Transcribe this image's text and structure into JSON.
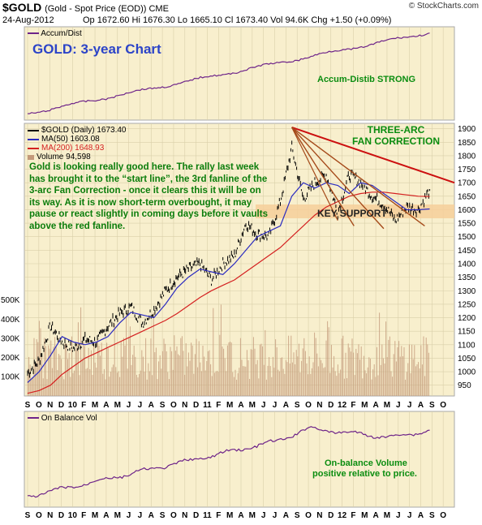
{
  "header": {
    "symbol": "$GOLD",
    "subtitle": "(Gold - Spot Price (EOD)) CME",
    "brand": "© StockCharts.com",
    "date": "24-Aug-2012",
    "ohlc": "Op 1672.60  Hi 1676.30  Lo 1665.10  Cl 1673.40  Vol 94.6K  Chg +1.50 (+0.09%)"
  },
  "colors": {
    "panel_bg": "#f8efcd",
    "frame": "#a9a9a9",
    "accum_line": "#6e2489",
    "price_up": "#000000",
    "ma50": "#2b2bc0",
    "ma200": "#d42020",
    "volume": "#c49a7a",
    "fanline": "#cc1010",
    "fan_brown": "#a54a1a",
    "support_band": "#f6cf9a",
    "blue_title": "#2c44c8",
    "green_text": "#0b8d10"
  },
  "panels": {
    "accum": {
      "label": "Accum/Dist",
      "note": "Accum-Distib STRONG",
      "big_title": "GOLD: 3-year Chart"
    },
    "price": {
      "label": "$GOLD (Daily) 1673.40",
      "legend": [
        {
          "label": "MA(50) 1603.08",
          "color": "#2b2bc0"
        },
        {
          "label": "MA(200) 1648.93",
          "color": "#d42020"
        },
        {
          "label": "Volume 94,598",
          "color": "#c49a7a"
        }
      ],
      "narrative": "Gold is looking really good here. The rally last week has brought it to the “start line”, the 3rd fanline of the 3-arc Fan Correction - once it clears this it will be on its way. As it is now short-term overbought, it may pause or react slightly in coming days before it vaults above the red fanline.",
      "fan_title_1": "THREE-ARC",
      "fan_title_2": "FAN CORRECTION",
      "key_support": "KEY SUPPORT"
    },
    "obv": {
      "label": "On Balance Vol",
      "note_1": "On-balance Volume",
      "note_2": "positive relative to price."
    }
  },
  "chart_data": {
    "type": "line",
    "title": "$GOLD (Gold - Spot Price (EOD)) CME",
    "y_ticks": [
      950,
      1000,
      1050,
      1100,
      1150,
      1200,
      1250,
      1300,
      1350,
      1400,
      1450,
      1500,
      1550,
      1600,
      1650,
      1700,
      1750,
      1800,
      1850,
      1900
    ],
    "volume_ticks": [
      "100K",
      "200K",
      "300K",
      "400K",
      "500K"
    ],
    "ylim": [
      910,
      1920
    ],
    "x_labels": [
      "S",
      "O",
      "N",
      "D",
      "10",
      "F",
      "M",
      "A",
      "M",
      "J",
      "J",
      "A",
      "S",
      "O",
      "N",
      "D",
      "11",
      "F",
      "M",
      "A",
      "M",
      "J",
      "J",
      "A",
      "S",
      "O",
      "N",
      "D",
      "12",
      "F",
      "M",
      "A",
      "M",
      "J",
      "J",
      "A",
      "S",
      "O"
    ],
    "series": [
      {
        "name": "$GOLD",
        "x": [
          "2009-09",
          "2009-10",
          "2009-11",
          "2009-12",
          "2010-01",
          "2010-02",
          "2010-03",
          "2010-04",
          "2010-05",
          "2010-06",
          "2010-07",
          "2010-08",
          "2010-09",
          "2010-10",
          "2010-11",
          "2010-12",
          "2011-01",
          "2011-02",
          "2011-03",
          "2011-04",
          "2011-05",
          "2011-06",
          "2011-07",
          "2011-08",
          "2011-09",
          "2011-10",
          "2011-11",
          "2011-12",
          "2012-01",
          "2012-02",
          "2012-03",
          "2012-04",
          "2012-05",
          "2012-06",
          "2012-07",
          "2012-08"
        ],
        "values": [
          995,
          1040,
          1170,
          1110,
          1085,
          1120,
          1110,
          1170,
          1215,
          1240,
          1180,
          1230,
          1300,
          1350,
          1380,
          1400,
          1340,
          1400,
          1430,
          1550,
          1510,
          1500,
          1630,
          1830,
          1640,
          1700,
          1730,
          1590,
          1730,
          1700,
          1650,
          1620,
          1560,
          1610,
          1600,
          1673
        ]
      },
      {
        "name": "MA(50)",
        "values": [
          960,
          1000,
          1060,
          1130,
          1110,
          1100,
          1110,
          1130,
          1180,
          1220,
          1210,
          1200,
          1250,
          1310,
          1350,
          1380,
          1370,
          1360,
          1400,
          1450,
          1500,
          1520,
          1540,
          1650,
          1700,
          1680,
          1700,
          1690,
          1660,
          1700,
          1690,
          1660,
          1630,
          1600,
          1600,
          1603
        ]
      },
      {
        "name": "MA(200)",
        "values": [
          920,
          930,
          950,
          990,
          1020,
          1050,
          1070,
          1090,
          1110,
          1130,
          1150,
          1170,
          1190,
          1215,
          1245,
          1275,
          1300,
          1320,
          1340,
          1370,
          1400,
          1430,
          1460,
          1500,
          1540,
          1580,
          1610,
          1630,
          1650,
          1660,
          1665,
          1665,
          1660,
          1655,
          1650,
          1649
        ]
      }
    ]
  }
}
